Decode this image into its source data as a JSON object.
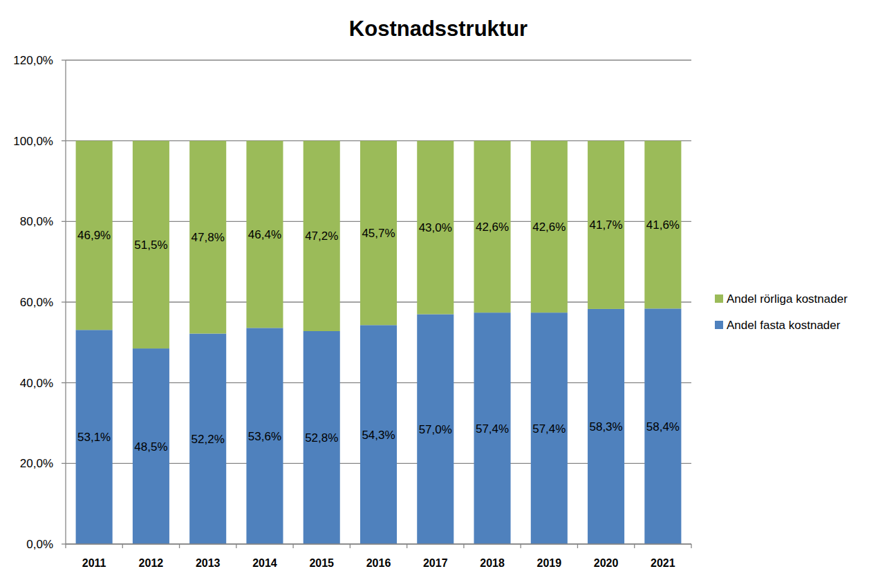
{
  "chart_data": {
    "type": "bar",
    "title": "Kostnadsstruktur",
    "stacked": true,
    "grid": true,
    "legend": "right",
    "data_labels": true,
    "categories": [
      "2011",
      "2012",
      "2013",
      "2014",
      "2015",
      "2016",
      "2017",
      "2018",
      "2019",
      "2020",
      "2021"
    ],
    "series": [
      {
        "name": "Andel fasta kostnader",
        "color": "#4f81bd",
        "values": [
          53.1,
          48.5,
          52.2,
          53.6,
          52.8,
          54.3,
          57.0,
          57.4,
          57.4,
          58.3,
          58.4
        ],
        "value_labels": [
          "53,1%",
          "48,5%",
          "52,2%",
          "53,6%",
          "52,8%",
          "54,3%",
          "57,0%",
          "57,4%",
          "57,4%",
          "58,3%",
          "58,4%"
        ]
      },
      {
        "name": "Andel rörliga kostnader",
        "color": "#9bbb59",
        "values": [
          46.9,
          51.5,
          47.8,
          46.4,
          47.2,
          45.7,
          43.0,
          42.6,
          42.6,
          41.7,
          41.6
        ],
        "value_labels": [
          "46,9%",
          "51,5%",
          "47,8%",
          "46,4%",
          "47,2%",
          "45,7%",
          "43,0%",
          "42,6%",
          "42,6%",
          "41,7%",
          "41,6%"
        ]
      }
    ],
    "ylim": [
      0,
      120
    ],
    "yticks": [
      {
        "value": 0,
        "label": "0,0%"
      },
      {
        "value": 20,
        "label": "20,0%"
      },
      {
        "value": 40,
        "label": "40,0%"
      },
      {
        "value": 60,
        "label": "60,0%"
      },
      {
        "value": 80,
        "label": "80,0%"
      },
      {
        "value": 100,
        "label": "100,0%"
      },
      {
        "value": 120,
        "label": "120,0%"
      }
    ]
  }
}
